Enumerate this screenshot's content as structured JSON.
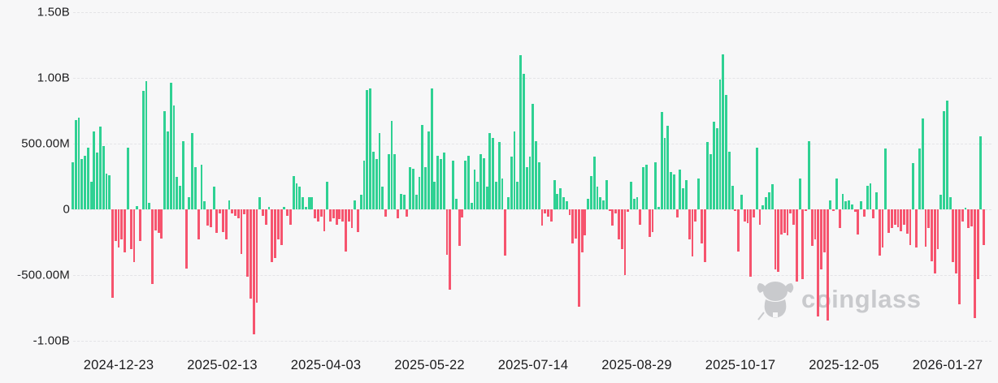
{
  "chart_data": {
    "type": "bar",
    "title": "",
    "xlabel": "",
    "ylabel": "",
    "legend": "none",
    "grid": "dashed horizontal gridlines",
    "y_axis": {
      "tick_labels": [
        "1.50B",
        "1.00B",
        "500.00M",
        "0",
        "-500.00M",
        "-1.00B"
      ],
      "tick_values_millions": [
        1500,
        1000,
        500,
        0,
        -500,
        -1000
      ],
      "ylim_millions": [
        -1100,
        1600
      ]
    },
    "x_axis": {
      "tick_labels": [
        "2024-12-23",
        "2025-02-13",
        "2025-04-03",
        "2025-05-22",
        "2025-07-14",
        "2025-08-29",
        "2025-10-17",
        "2025-12-05",
        "2026-01-27"
      ]
    },
    "values_unit": "USD, M = million, B = billion (values estimated from pixels)",
    "positive_color": "#2fd193",
    "negative_color": "#f6546e",
    "values_millions": [
      360,
      680,
      700,
      380,
      410,
      470,
      210,
      590,
      430,
      630,
      480,
      270,
      260,
      -670,
      -240,
      -290,
      -230,
      -330,
      470,
      -300,
      -400,
      25,
      -240,
      900,
      975,
      50,
      -570,
      -160,
      -180,
      -220,
      750,
      590,
      965,
      790,
      245,
      180,
      520,
      -450,
      90,
      580,
      320,
      -230,
      340,
      60,
      -125,
      -135,
      170,
      -180,
      -30,
      -170,
      -230,
      70,
      -30,
      -50,
      -65,
      -340,
      -40,
      -510,
      -680,
      -950,
      -710,
      90,
      -50,
      -115,
      20,
      -400,
      -370,
      -230,
      -270,
      20,
      -50,
      -115,
      255,
      200,
      170,
      90,
      20,
      90,
      90,
      -65,
      -95,
      -55,
      -165,
      210,
      -95,
      -65,
      -115,
      -75,
      -95,
      -320,
      -95,
      -145,
      70,
      -175,
      110,
      370,
      910,
      920,
      440,
      380,
      580,
      170,
      -55,
      420,
      670,
      420,
      -65,
      120,
      110,
      -55,
      320,
      310,
      110,
      245,
      645,
      320,
      595,
      920,
      210,
      410,
      380,
      430,
      -345,
      -610,
      370,
      80,
      -280,
      -60,
      370,
      410,
      50,
      300,
      210,
      420,
      390,
      170,
      580,
      545,
      210,
      510,
      235,
      -350,
      90,
      400,
      595,
      210,
      1170,
      1030,
      320,
      400,
      800,
      520,
      360,
      -125,
      -30,
      -55,
      -95,
      225,
      120,
      160,
      90,
      60,
      -45,
      -260,
      -220,
      -740,
      -330,
      -200,
      80,
      255,
      400,
      170,
      90,
      70,
      225,
      -15,
      -125,
      -30,
      -230,
      -300,
      -500,
      -20,
      210,
      80,
      90,
      -115,
      320,
      340,
      -210,
      -170,
      360,
      20,
      740,
      545,
      635,
      285,
      265,
      -60,
      300,
      160,
      225,
      -230,
      -360,
      -95,
      235,
      -260,
      -400,
      510,
      420,
      665,
      615,
      985,
      1180,
      870,
      440,
      180,
      -15,
      -320,
      110,
      -95,
      -105,
      -515,
      -60,
      470,
      -115,
      30,
      90,
      130,
      190,
      -455,
      -475,
      -190,
      -180,
      -200,
      -30,
      -115,
      -550,
      235,
      -530,
      -15,
      520,
      -280,
      -230,
      -815,
      -455,
      -330,
      -845,
      70,
      -15,
      235,
      -145,
      120,
      60,
      70,
      40,
      -20,
      -190,
      60,
      -55,
      180,
      200,
      -65,
      130,
      -350,
      -290,
      460,
      -180,
      -145,
      -115,
      -135,
      -165,
      -115,
      -185,
      -270,
      350,
      -290,
      460,
      690,
      -285,
      -145,
      -395,
      -490,
      -300,
      110,
      750,
      830,
      90,
      -400,
      -490,
      -720,
      -95,
      10,
      -145,
      -130,
      -825,
      -530,
      553,
      -270
    ]
  },
  "watermark": {
    "text": "coinglass"
  },
  "colors": {
    "background": "#f7f7f8",
    "axis_text": "#1d1d1f",
    "gridline": "#e4e4e7",
    "watermark": "#c9cacd"
  }
}
